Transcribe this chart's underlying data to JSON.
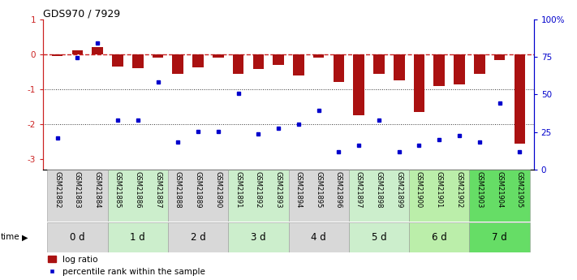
{
  "title": "GDS970 / 7929",
  "samples": [
    "GSM21882",
    "GSM21883",
    "GSM21884",
    "GSM21885",
    "GSM21886",
    "GSM21887",
    "GSM21888",
    "GSM21889",
    "GSM21890",
    "GSM21891",
    "GSM21892",
    "GSM21893",
    "GSM21894",
    "GSM21895",
    "GSM21896",
    "GSM21897",
    "GSM21898",
    "GSM21899",
    "GSM21900",
    "GSM21901",
    "GSM21902",
    "GSM21903",
    "GSM21904",
    "GSM21905"
  ],
  "log_ratio": [
    -0.04,
    0.12,
    0.22,
    -0.35,
    -0.4,
    -0.1,
    -0.55,
    -0.38,
    -0.08,
    -0.55,
    -0.42,
    -0.3,
    -0.6,
    -0.08,
    -0.8,
    -1.75,
    -0.55,
    -0.75,
    -1.65,
    -0.9,
    -0.85,
    -0.55,
    -0.15,
    -2.55
  ],
  "pct_vals": [
    15,
    73,
    83,
    28,
    28,
    55,
    12,
    20,
    20,
    47,
    18,
    22,
    25,
    35,
    5,
    10,
    28,
    5,
    10,
    14,
    17,
    12,
    40,
    5
  ],
  "time_groups": [
    {
      "label": "0 d",
      "indices": [
        0,
        1,
        2
      ],
      "color": "#d8d8d8"
    },
    {
      "label": "1 d",
      "indices": [
        3,
        4,
        5
      ],
      "color": "#cceecc"
    },
    {
      "label": "2 d",
      "indices": [
        6,
        7,
        8
      ],
      "color": "#d8d8d8"
    },
    {
      "label": "3 d",
      "indices": [
        9,
        10,
        11
      ],
      "color": "#cceecc"
    },
    {
      "label": "4 d",
      "indices": [
        12,
        13,
        14
      ],
      "color": "#d8d8d8"
    },
    {
      "label": "5 d",
      "indices": [
        15,
        16,
        17
      ],
      "color": "#cceecc"
    },
    {
      "label": "6 d",
      "indices": [
        18,
        19,
        20
      ],
      "color": "#bbeeaa"
    },
    {
      "label": "7 d",
      "indices": [
        21,
        22,
        23
      ],
      "color": "#66dd66"
    }
  ],
  "bar_color": "#aa1111",
  "point_color": "#0000cc",
  "hline_color": "#cc2222",
  "dotted_color": "#333333",
  "ylim": [
    -3.3,
    1.0
  ],
  "y2lim": [
    0,
    100
  ],
  "legend_bar_label": "log ratio",
  "legend_point_label": "percentile rank within the sample",
  "bar_width": 0.55
}
